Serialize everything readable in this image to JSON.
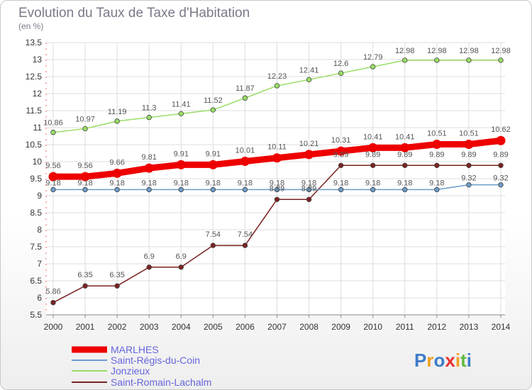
{
  "chart_data": {
    "type": "line",
    "title": "Evolution du Taux de Taxe d'Habitation",
    "subtitle": "(en %)",
    "x": [
      "2000",
      "2001",
      "2002",
      "2003",
      "2004",
      "2005",
      "2006",
      "2007",
      "2008",
      "2009",
      "2010",
      "2011",
      "2012",
      "2013",
      "2014"
    ],
    "ylim": [
      5.5,
      13.5
    ],
    "yticks": [
      "5.5",
      "6",
      "6.5",
      "7",
      "7.5",
      "8",
      "8.5",
      "9",
      "9.5",
      "10",
      "10.5",
      "11",
      "11.5",
      "12",
      "12.5",
      "13",
      "13.5"
    ],
    "grid": true,
    "legend_position": "bottom-left",
    "series": [
      {
        "name": "MARLHES",
        "color": "#ee0000",
        "values": [
          9.56,
          9.56,
          9.66,
          9.81,
          9.91,
          9.91,
          10.01,
          10.11,
          10.21,
          10.31,
          10.41,
          10.41,
          10.51,
          10.51,
          10.62
        ],
        "labels": [
          "9.56",
          "9.56",
          "9.66",
          "9.81",
          "9.91",
          "9.91",
          "10.01",
          "10.11",
          "10.21",
          "10.31",
          "10.41",
          "10.41",
          "10.51",
          "10.51",
          "10.62"
        ]
      },
      {
        "name": "Saint-Régis-du-Coin",
        "color": "#6a9cca",
        "values": [
          9.18,
          9.18,
          9.18,
          9.18,
          9.18,
          9.18,
          9.18,
          9.18,
          9.18,
          9.18,
          9.18,
          9.18,
          9.18,
          9.32,
          9.32
        ],
        "labels": [
          "9.18",
          "9.18",
          "9.18",
          "9.18",
          "9.18",
          "9.18",
          "9.18",
          "9.18",
          "9.18",
          "9.18",
          "9.18",
          "9.18",
          "9.18",
          "9.32",
          "9.32"
        ]
      },
      {
        "name": "Jonzieux",
        "color": "#99dd66",
        "values": [
          10.86,
          10.97,
          11.19,
          11.3,
          11.41,
          11.52,
          11.87,
          12.23,
          12.41,
          12.6,
          12.79,
          12.98,
          12.98,
          12.98,
          12.98
        ],
        "labels": [
          "10.86",
          "10.97",
          "11.19",
          "11.3",
          "11.41",
          "11.52",
          "11.87",
          "12.23",
          "12.41",
          "12.6",
          "12.79",
          "12.98",
          "12.98",
          "12.98",
          "12.98"
        ]
      },
      {
        "name": "Saint-Romain-Lachalm",
        "color": "#7a2222",
        "values": [
          5.86,
          6.35,
          6.35,
          6.9,
          6.9,
          7.54,
          7.54,
          8.89,
          8.89,
          9.89,
          9.89,
          9.89,
          9.89,
          9.89,
          9.89
        ],
        "labels": [
          "5.86",
          "6.35",
          "6.35",
          "6.9",
          "6.9",
          "7.54",
          "7.54",
          "8.89",
          "8.89",
          "9.89",
          "9.89",
          "9.89",
          "9.89",
          "9.89",
          "9.89"
        ]
      }
    ]
  },
  "brand": {
    "letters": [
      {
        "ch": "P",
        "color": "#3d7cc9"
      },
      {
        "ch": "r",
        "color": "#f0a020"
      },
      {
        "ch": "o",
        "color": "#3d7cc9"
      },
      {
        "ch": "x",
        "color": "#e83030"
      },
      {
        "ch": "i",
        "color": "#f0a020"
      },
      {
        "ch": "t",
        "color": "#60b840"
      },
      {
        "ch": "i",
        "color": "#3d7cc9"
      }
    ]
  }
}
